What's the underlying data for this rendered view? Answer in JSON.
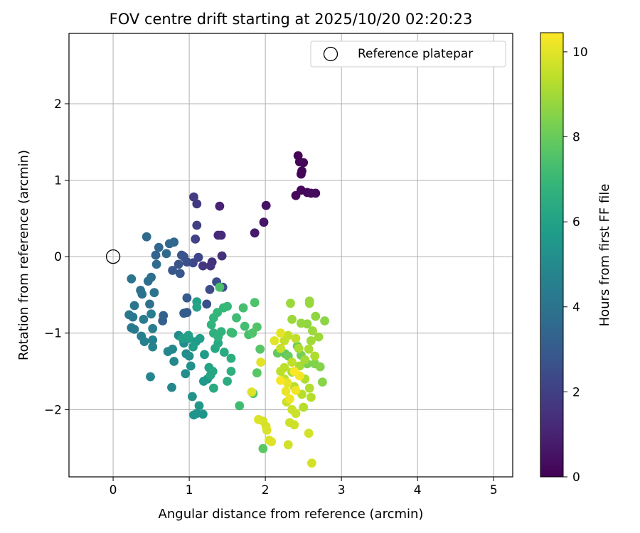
{
  "chart_data": {
    "type": "scatter",
    "title": "FOV centre drift starting at 2025/10/20 02:20:23",
    "xlabel": "Angular distance from reference (arcmin)",
    "ylabel": "Rotation from reference (arcmin)",
    "xlim": [
      -0.58,
      5.25
    ],
    "ylim": [
      -2.88,
      2.92
    ],
    "xticks": [
      0,
      1,
      2,
      3,
      4,
      5
    ],
    "yticks": [
      -2,
      -1,
      0,
      1,
      2
    ],
    "grid": true,
    "legend": {
      "location": "top-right",
      "label": "Reference platepar"
    },
    "reference_point": {
      "x": 0,
      "y": 0
    },
    "colorbar": {
      "label": "Hours from first FF file",
      "min": 0,
      "max": 10.45,
      "ticks": [
        0,
        2,
        4,
        6,
        8,
        10
      ],
      "colormap": "viridis"
    },
    "colormap_stops": [
      "#440154",
      "#482878",
      "#3e4989",
      "#31688e",
      "#26828e",
      "#1f9e89",
      "#35b779",
      "#6ece58",
      "#b5de2b",
      "#fde725"
    ],
    "series": [
      {
        "name": "FOV centre",
        "points": [
          [
            2.43,
            1.32,
            0.05
          ],
          [
            2.45,
            1.24,
            0.08
          ],
          [
            2.48,
            1.12,
            0.1
          ],
          [
            2.47,
            1.08,
            0.12
          ],
          [
            2.5,
            1.23,
            0.15
          ],
          [
            2.4,
            0.8,
            0.2
          ],
          [
            2.47,
            0.87,
            0.22
          ],
          [
            2.55,
            0.84,
            0.25
          ],
          [
            2.6,
            0.83,
            0.3
          ],
          [
            2.66,
            0.83,
            0.32
          ],
          [
            2.01,
            0.67,
            0.5
          ],
          [
            1.98,
            0.45,
            0.6
          ],
          [
            1.86,
            0.31,
            0.7
          ],
          [
            1.4,
            0.66,
            1.0
          ],
          [
            1.38,
            0.28,
            1.2
          ],
          [
            1.42,
            0.28,
            1.25
          ],
          [
            1.43,
            0.01,
            1.4
          ],
          [
            1.3,
            -0.07,
            1.5
          ],
          [
            1.28,
            -0.12,
            1.6
          ],
          [
            1.18,
            -0.12,
            1.7
          ],
          [
            1.1,
            0.69,
            1.8
          ],
          [
            1.06,
            0.78,
            1.9
          ],
          [
            1.1,
            0.41,
            2.0
          ],
          [
            1.08,
            0.23,
            2.1
          ],
          [
            1.12,
            -0.01,
            2.2
          ],
          [
            1.05,
            -0.08,
            2.3
          ],
          [
            1.27,
            -0.43,
            2.4
          ],
          [
            1.36,
            -0.33,
            2.5
          ],
          [
            1.44,
            -0.4,
            2.45
          ],
          [
            1.23,
            -0.62,
            2.55
          ],
          [
            0.97,
            -0.07,
            2.6
          ],
          [
            0.93,
            0.0,
            2.7
          ],
          [
            0.86,
            -0.1,
            2.8
          ],
          [
            0.9,
            0.02,
            2.75
          ],
          [
            0.78,
            -0.18,
            2.85
          ],
          [
            0.88,
            -0.22,
            2.9
          ],
          [
            0.97,
            -0.54,
            3.0
          ],
          [
            0.93,
            -0.74,
            3.1
          ],
          [
            0.97,
            -0.73,
            3.05
          ],
          [
            0.65,
            -0.84,
            3.2
          ],
          [
            0.66,
            -0.77,
            3.3
          ],
          [
            0.56,
            0.02,
            3.35
          ],
          [
            0.6,
            0.12,
            3.4
          ],
          [
            0.74,
            0.17,
            3.45
          ],
          [
            0.8,
            0.19,
            3.5
          ],
          [
            0.7,
            0.04,
            3.55
          ],
          [
            0.44,
            0.26,
            3.6
          ],
          [
            0.57,
            -0.1,
            3.7
          ],
          [
            0.5,
            -0.27,
            3.75
          ],
          [
            0.46,
            -0.32,
            3.8
          ],
          [
            0.48,
            -0.62,
            3.85
          ],
          [
            0.36,
            -0.44,
            3.9
          ],
          [
            0.38,
            -0.49,
            3.95
          ],
          [
            0.54,
            -0.47,
            4.0
          ],
          [
            0.24,
            -0.29,
            4.05
          ],
          [
            0.28,
            -0.64,
            4.1
          ],
          [
            0.21,
            -0.76,
            4.15
          ],
          [
            0.26,
            -0.79,
            4.2
          ],
          [
            0.24,
            -0.93,
            4.25
          ],
          [
            0.28,
            -0.95,
            4.3
          ],
          [
            0.4,
            -0.82,
            4.35
          ],
          [
            0.5,
            -0.75,
            4.4
          ],
          [
            0.52,
            -0.94,
            4.45
          ],
          [
            0.37,
            -1.04,
            4.5
          ],
          [
            0.41,
            -1.11,
            4.55
          ],
          [
            0.52,
            -1.09,
            4.6
          ],
          [
            0.52,
            -1.18,
            4.7
          ],
          [
            0.49,
            -1.57,
            4.75
          ],
          [
            0.77,
            -1.71,
            4.8
          ],
          [
            0.72,
            -1.24,
            4.85
          ],
          [
            0.78,
            -1.21,
            4.9
          ],
          [
            0.8,
            -1.37,
            4.95
          ],
          [
            0.86,
            -1.03,
            5.0
          ],
          [
            0.93,
            -1.13,
            5.05
          ],
          [
            0.96,
            -1.27,
            5.1
          ],
          [
            0.95,
            -1.53,
            5.15
          ],
          [
            1.0,
            -1.3,
            5.2
          ],
          [
            1.02,
            -1.43,
            5.25
          ],
          [
            1.04,
            -1.83,
            5.3
          ],
          [
            1.06,
            -2.07,
            5.35
          ],
          [
            1.1,
            -2.05,
            5.4
          ],
          [
            1.18,
            -2.06,
            5.45
          ],
          [
            1.13,
            -1.95,
            5.5
          ],
          [
            1.19,
            -1.63,
            5.55
          ],
          [
            1.24,
            -1.6,
            5.6
          ],
          [
            1.2,
            -1.28,
            5.65
          ],
          [
            1.09,
            -1.11,
            5.7
          ],
          [
            1.14,
            -1.07,
            5.75
          ],
          [
            1.05,
            -1.18,
            5.8
          ],
          [
            1.0,
            -1.07,
            5.85
          ],
          [
            0.91,
            -1.07,
            5.9
          ],
          [
            0.99,
            -1.03,
            5.95
          ],
          [
            1.1,
            -0.59,
            6.0
          ],
          [
            1.1,
            -0.66,
            6.05
          ],
          [
            1.26,
            -1.45,
            6.1
          ],
          [
            1.28,
            -1.55,
            6.15
          ],
          [
            1.31,
            -1.5,
            6.2
          ],
          [
            1.34,
            -1.2,
            6.25
          ],
          [
            1.38,
            -1.13,
            6.3
          ],
          [
            1.32,
            -1.72,
            6.35
          ],
          [
            1.46,
            -1.25,
            6.4
          ],
          [
            1.5,
            -1.63,
            6.5
          ],
          [
            1.55,
            -1.33,
            6.55
          ],
          [
            1.55,
            -1.5,
            6.6
          ],
          [
            1.32,
            -1.0,
            6.65
          ],
          [
            1.38,
            -1.05,
            6.7
          ],
          [
            1.42,
            -0.98,
            6.75
          ],
          [
            1.29,
            -0.89,
            6.8
          ],
          [
            1.32,
            -0.8,
            6.85
          ],
          [
            1.37,
            -0.73,
            6.9
          ],
          [
            1.45,
            -0.67,
            6.95
          ],
          [
            1.5,
            -0.65,
            7.0
          ],
          [
            1.55,
            -0.99,
            7.05
          ],
          [
            1.57,
            -1.0,
            7.1
          ],
          [
            1.62,
            -0.8,
            7.15
          ],
          [
            1.66,
            -1.95,
            7.2
          ],
          [
            1.73,
            -0.91,
            7.25
          ],
          [
            1.71,
            -0.67,
            7.3
          ],
          [
            1.78,
            -1.02,
            7.35
          ],
          [
            1.4,
            -0.4,
            7.4
          ],
          [
            1.86,
            -0.6,
            7.45
          ],
          [
            1.83,
            -1.0,
            7.5
          ],
          [
            1.89,
            -0.92,
            7.55
          ],
          [
            1.84,
            -1.79,
            7.6
          ],
          [
            1.93,
            -1.21,
            7.65
          ],
          [
            1.89,
            -1.52,
            7.7
          ],
          [
            1.97,
            -2.51,
            7.75
          ],
          [
            2.26,
            -1.27,
            7.8
          ],
          [
            2.16,
            -1.26,
            7.9
          ],
          [
            2.3,
            -1.3,
            8.0
          ],
          [
            2.42,
            -1.17,
            8.1
          ],
          [
            2.47,
            -1.29,
            8.2
          ],
          [
            2.55,
            -1.4,
            8.3
          ],
          [
            2.65,
            -1.4,
            8.4
          ],
          [
            2.72,
            -1.44,
            8.5
          ],
          [
            2.75,
            -1.64,
            8.55
          ],
          [
            2.78,
            -0.84,
            8.6
          ],
          [
            2.66,
            -0.78,
            8.65
          ],
          [
            2.55,
            -0.88,
            8.7
          ],
          [
            2.47,
            -0.87,
            8.75
          ],
          [
            2.58,
            -0.58,
            8.8
          ],
          [
            2.58,
            -0.61,
            8.82
          ],
          [
            2.33,
            -0.61,
            8.85
          ],
          [
            2.35,
            -0.82,
            8.88
          ],
          [
            2.62,
            -0.97,
            8.9
          ],
          [
            2.7,
            -1.05,
            8.92
          ],
          [
            2.6,
            -1.1,
            8.95
          ],
          [
            2.52,
            -1.35,
            9.0
          ],
          [
            2.45,
            -1.43,
            9.05
          ],
          [
            2.35,
            -1.51,
            9.1
          ],
          [
            2.44,
            -1.2,
            9.12
          ],
          [
            2.57,
            -1.21,
            9.15
          ],
          [
            2.65,
            -1.3,
            9.18
          ],
          [
            2.52,
            -1.6,
            9.2
          ],
          [
            2.58,
            -1.72,
            9.25
          ],
          [
            2.6,
            -1.84,
            9.28
          ],
          [
            2.5,
            -1.97,
            9.3
          ],
          [
            2.48,
            -1.8,
            9.32
          ],
          [
            2.38,
            -1.7,
            9.35
          ],
          [
            2.25,
            -1.6,
            9.38
          ],
          [
            2.2,
            -1.5,
            9.4
          ],
          [
            2.25,
            -1.45,
            9.42
          ],
          [
            2.35,
            -1.38,
            9.45
          ],
          [
            2.4,
            -1.07,
            9.48
          ],
          [
            2.3,
            -1.03,
            9.5
          ],
          [
            2.25,
            -1.1,
            9.55
          ],
          [
            2.2,
            -1.2,
            9.58
          ],
          [
            2.28,
            -1.9,
            9.6
          ],
          [
            2.4,
            -2.05,
            9.62
          ],
          [
            2.35,
            -2.0,
            9.65
          ],
          [
            2.32,
            -2.17,
            9.68
          ],
          [
            2.38,
            -2.2,
            9.7
          ],
          [
            2.3,
            -2.46,
            9.72
          ],
          [
            2.57,
            -2.31,
            9.75
          ],
          [
            2.61,
            -2.7,
            9.78
          ],
          [
            2.01,
            -2.22,
            9.8
          ],
          [
            1.97,
            -2.15,
            9.82
          ],
          [
            2.02,
            -2.27,
            9.85
          ],
          [
            1.91,
            -2.13,
            9.88
          ],
          [
            2.05,
            -2.4,
            9.9
          ],
          [
            2.08,
            -2.42,
            9.92
          ],
          [
            1.82,
            -1.77,
            9.95
          ],
          [
            1.94,
            -1.38,
            9.98
          ],
          [
            2.12,
            -1.1,
            10.0
          ],
          [
            2.2,
            -1.0,
            10.05
          ],
          [
            2.29,
            -1.65,
            10.1
          ],
          [
            2.27,
            -1.76,
            10.15
          ],
          [
            2.32,
            -1.86,
            10.2
          ],
          [
            2.4,
            -1.75,
            10.25
          ],
          [
            2.45,
            -1.56,
            10.3
          ],
          [
            2.2,
            -1.62,
            10.35
          ],
          [
            2.38,
            -1.5,
            10.4
          ]
        ]
      }
    ]
  }
}
